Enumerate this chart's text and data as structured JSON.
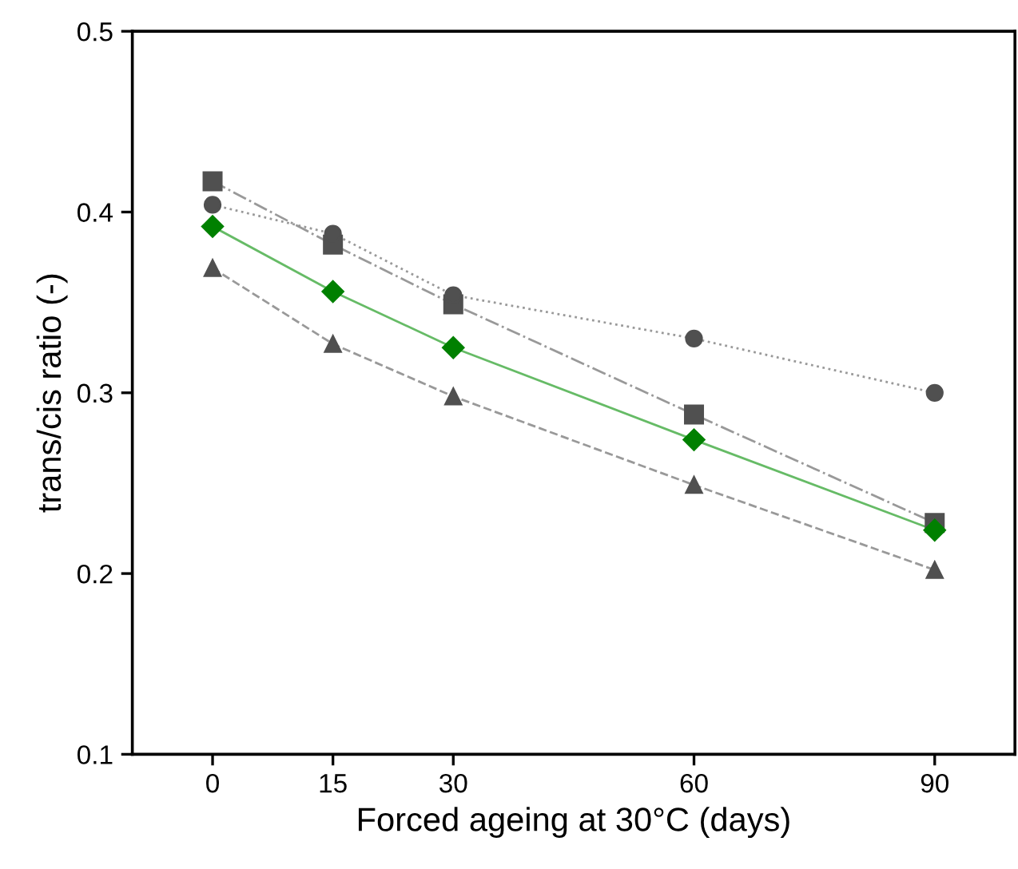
{
  "chart_data": {
    "type": "line",
    "xlabel": "Forced ageing at 30°C (days)",
    "ylabel": "trans/cis ratio (-)",
    "x": [
      0,
      15,
      30,
      60,
      90
    ],
    "xlim": [
      -10,
      100
    ],
    "xticks": [
      0,
      15,
      30,
      60,
      90
    ],
    "ylim": [
      0.1,
      0.5
    ],
    "yticks": [
      0.1,
      0.2,
      0.3,
      0.4,
      0.5
    ],
    "grid": false,
    "legend": false,
    "series": [
      {
        "color": "#505050",
        "marker": "square",
        "line_style": "dashdot",
        "values": [
          0.417,
          0.382,
          0.349,
          0.288,
          0.228
        ]
      },
      {
        "color": "#505050",
        "marker": "circle",
        "line_style": "dotted",
        "values": [
          0.404,
          0.388,
          0.354,
          0.33,
          0.3
        ]
      },
      {
        "color": "#008000",
        "marker": "diamond",
        "line_style": "solid",
        "values": [
          0.392,
          0.356,
          0.325,
          0.274,
          0.224
        ]
      },
      {
        "color": "#505050",
        "marker": "triangle",
        "line_style": "dashed",
        "values": [
          0.369,
          0.327,
          0.298,
          0.249,
          0.202
        ]
      }
    ]
  }
}
